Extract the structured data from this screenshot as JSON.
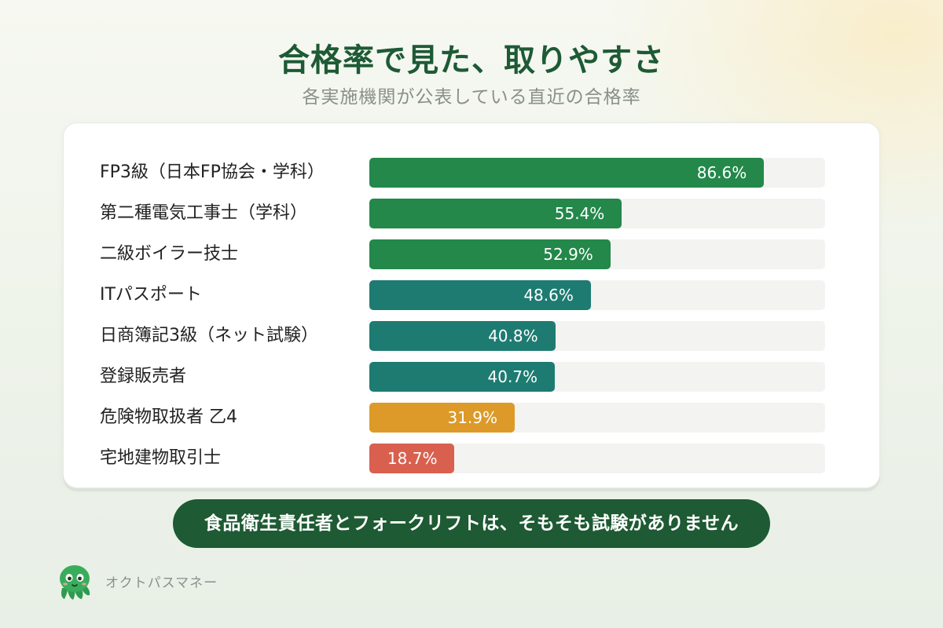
{
  "header": {
    "title": "合格率で見た、取りやすさ",
    "subtitle": "各実施機関が公表している直近の合格率"
  },
  "chart_data": {
    "type": "bar",
    "orientation": "horizontal",
    "title": "合格率で見た、取りやすさ",
    "subtitle": "各実施機関が公表している直近の合格率",
    "xlim": [
      0,
      100
    ],
    "grid": false,
    "categories": [
      "FP3級（日本FP協会・学科）",
      "第二種電気工事士（学科）",
      "二級ボイラー技士",
      "ITパスポート",
      "日商簿記3級（ネット試験）",
      "登録販売者",
      "危険物取扱者 乙4",
      "宅地建物取引士"
    ],
    "values": [
      86.6,
      55.4,
      52.9,
      48.6,
      40.8,
      40.7,
      31.9,
      18.7
    ],
    "value_labels": [
      "86.6%",
      "55.4%",
      "52.9%",
      "48.6%",
      "40.8%",
      "40.7%",
      "31.9%",
      "18.7%"
    ],
    "bar_colors": [
      "#23884a",
      "#23884a",
      "#23884a",
      "#1e7b72",
      "#1e7b72",
      "#1e7b72",
      "#dd9a28",
      "#d9604f"
    ]
  },
  "note": {
    "text": "食品衛生責任者とフォークリフトは、そもそも試験がありません"
  },
  "brand": {
    "name": "オクトパスマネー",
    "icon": "octopus-mascot-icon"
  }
}
